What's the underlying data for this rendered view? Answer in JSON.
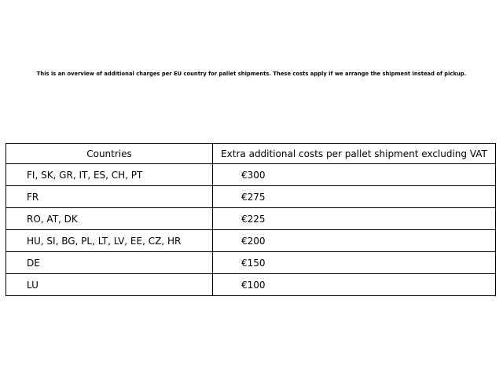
{
  "colors": {
    "background": "#ffffff",
    "text": "#000000",
    "table_border": "#000000"
  },
  "chart_data": {
    "type": "table",
    "title": "This is an overview of additional charges per EU country for pallet shipments. These costs apply if we arrange the shipment instead of pickup.",
    "columns": [
      "Countries",
      "Extra additional costs per pallet shipment excluding VAT"
    ],
    "rows": [
      [
        "FI, SK, GR, IT, ES, CH, PT",
        "€300"
      ],
      [
        "FR",
        "€275"
      ],
      [
        "RO, AT, DK",
        "€225"
      ],
      [
        "HU, SI, BG, PL, LT, LV, EE, CZ, HR",
        "€200"
      ],
      [
        "DE",
        "€150"
      ],
      [
        "LU",
        "€100"
      ]
    ],
    "values_eur": [
      300,
      275,
      225,
      200,
      150,
      100
    ],
    "currency": "EUR",
    "layout": {
      "header_align": "center",
      "body_align": "left",
      "grid": "full-borders",
      "caption_position": "top-center"
    }
  }
}
